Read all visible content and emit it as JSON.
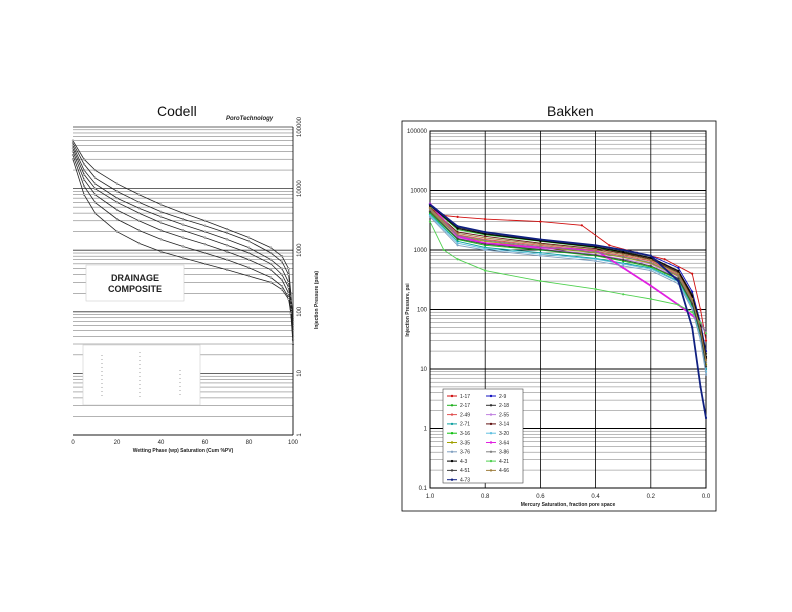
{
  "left": {
    "title": "Codell",
    "brand": "PoroTechnology",
    "box_line1": "DRAINAGE",
    "box_line2": "COMPOSITE",
    "xlabel": "Wetting Phase (wp) Saturation (Cum %PV)",
    "ylabel": "Injection Pressure (psia)",
    "x_ticks": [
      "0",
      "20",
      "40",
      "60",
      "80",
      "100"
    ],
    "y_ticks": [
      "1",
      "10",
      "100",
      "1000",
      "10000",
      "100000"
    ]
  },
  "right": {
    "title": "Bakken",
    "xlabel": "Mercury Saturation, fraction pore space",
    "ylabel": "Injection Pressure, psi",
    "x_ticks": [
      "1.0",
      "0.8",
      "0.6",
      "0.4",
      "0.2",
      "0.0"
    ],
    "y_ticks": [
      "0.1",
      "1",
      "10",
      "100",
      "1000",
      "10000",
      "100000"
    ]
  },
  "chart_data": [
    {
      "type": "line",
      "title": "Codell",
      "xlabel": "Wetting Phase (wp) Saturation (Cum %PV)",
      "ylabel": "Injection Pressure (psia)",
      "xlim": [
        0,
        100
      ],
      "ylim": [
        1,
        100000
      ],
      "y_scale": "log",
      "grid": true,
      "series": [
        {
          "x": [
            0,
            5,
            10,
            20,
            30,
            40,
            50,
            60,
            70,
            80,
            90,
            95,
            98,
            99,
            100
          ],
          "y": [
            60000,
            30000,
            20000,
            12000,
            8000,
            5500,
            4000,
            3000,
            2200,
            1600,
            1100,
            800,
            500,
            200,
            80
          ]
        },
        {
          "x": [
            0,
            5,
            10,
            20,
            30,
            40,
            50,
            60,
            70,
            80,
            90,
            95,
            98,
            99,
            100
          ],
          "y": [
            55000,
            25000,
            15000,
            9000,
            6000,
            4200,
            3200,
            2500,
            1900,
            1400,
            900,
            650,
            400,
            180,
            70
          ]
        },
        {
          "x": [
            0,
            5,
            10,
            20,
            30,
            40,
            50,
            60,
            70,
            80,
            90,
            95,
            98,
            99,
            100
          ],
          "y": [
            50000,
            20000,
            12000,
            7000,
            4800,
            3500,
            2600,
            2000,
            1500,
            1100,
            700,
            500,
            300,
            150,
            60
          ]
        },
        {
          "x": [
            0,
            5,
            10,
            20,
            30,
            40,
            50,
            60,
            70,
            80,
            90,
            95,
            98,
            99,
            100
          ],
          "y": [
            45000,
            17000,
            10000,
            6000,
            4000,
            2800,
            2100,
            1600,
            1200,
            900,
            600,
            400,
            250,
            130,
            50
          ]
        },
        {
          "x": [
            0,
            5,
            10,
            20,
            30,
            40,
            50,
            60,
            70,
            80,
            90,
            95,
            98,
            99,
            100
          ],
          "y": [
            40000,
            14000,
            8000,
            4500,
            3000,
            2100,
            1600,
            1250,
            950,
            700,
            480,
            330,
            200,
            110,
            40
          ]
        },
        {
          "x": [
            0,
            5,
            10,
            20,
            30,
            40,
            50,
            60,
            70,
            80,
            90,
            95,
            98,
            99,
            100
          ],
          "y": [
            35000,
            11000,
            6000,
            3200,
            2100,
            1500,
            1150,
            900,
            700,
            520,
            360,
            260,
            170,
            100,
            35
          ]
        },
        {
          "x": [
            0,
            5,
            10,
            20,
            30,
            40,
            50,
            60,
            70,
            80,
            90,
            95,
            98,
            99,
            100
          ],
          "y": [
            30000,
            8000,
            4000,
            2000,
            1300,
            950,
            750,
            600,
            480,
            380,
            300,
            230,
            160,
            95,
            30
          ]
        }
      ]
    },
    {
      "type": "line",
      "title": "Bakken",
      "xlabel": "Mercury Saturation, fraction pore space",
      "ylabel": "Injection Pressure, psi",
      "xlim": [
        1.0,
        0.0
      ],
      "ylim": [
        0.1,
        100000
      ],
      "y_scale": "log",
      "grid": true,
      "legend_position": "bottom-left",
      "series": [
        {
          "name": "1-17",
          "color": "#d01010",
          "x": [
            1.0,
            0.95,
            0.9,
            0.8,
            0.6,
            0.45,
            0.35,
            0.25,
            0.15,
            0.05,
            0.02,
            0.0
          ],
          "y": [
            5000,
            3800,
            3600,
            3300,
            3000,
            2600,
            1200,
            900,
            700,
            400,
            100,
            30
          ]
        },
        {
          "name": "2-9",
          "color": "#1010c0",
          "x": [
            1.0,
            0.9,
            0.8,
            0.6,
            0.4,
            0.3,
            0.2,
            0.1,
            0.05,
            0.02,
            0.0
          ],
          "y": [
            6000,
            2500,
            2000,
            1500,
            1200,
            1000,
            800,
            500,
            200,
            60,
            20
          ]
        },
        {
          "name": "2-17",
          "color": "#20b020",
          "x": [
            1.0,
            0.9,
            0.8,
            0.6,
            0.4,
            0.3,
            0.2,
            0.1,
            0.05,
            0.02,
            0.0
          ],
          "y": [
            5500,
            2200,
            1800,
            1400,
            1100,
            900,
            700,
            400,
            150,
            50,
            15
          ]
        },
        {
          "name": "2-18",
          "color": "#303030",
          "x": [
            1.0,
            0.9,
            0.8,
            0.6,
            0.4,
            0.3,
            0.2,
            0.1,
            0.05,
            0.02,
            0.0
          ],
          "y": [
            5800,
            2400,
            1900,
            1450,
            1150,
            950,
            750,
            450,
            180,
            55,
            18
          ]
        },
        {
          "name": "2-49",
          "color": "#e05050",
          "x": [
            1.0,
            0.9,
            0.8,
            0.6,
            0.4,
            0.3,
            0.2,
            0.1,
            0.05,
            0.02,
            0.0
          ],
          "y": [
            5000,
            1800,
            1500,
            1200,
            950,
            800,
            650,
            380,
            140,
            45,
            12
          ]
        },
        {
          "name": "2-55",
          "color": "#c080e0",
          "x": [
            1.0,
            0.9,
            0.8,
            0.6,
            0.4,
            0.3,
            0.2,
            0.1,
            0.05,
            0.02,
            0.0
          ],
          "y": [
            4500,
            1600,
            1300,
            1050,
            850,
            700,
            580,
            340,
            120,
            40,
            10
          ]
        },
        {
          "name": "2-71",
          "color": "#10a0a0",
          "x": [
            1.0,
            0.9,
            0.8,
            0.6,
            0.4,
            0.3,
            0.2,
            0.1,
            0.05,
            0.02,
            0.0
          ],
          "y": [
            4000,
            1400,
            1100,
            900,
            720,
            600,
            500,
            300,
            110,
            35,
            10
          ]
        },
        {
          "name": "3-14",
          "color": "#601010",
          "x": [
            1.0,
            0.9,
            0.8,
            0.6,
            0.4,
            0.3,
            0.2,
            0.1,
            0.05,
            0.02,
            0.0
          ],
          "y": [
            5200,
            2000,
            1700,
            1300,
            1050,
            880,
            700,
            420,
            160,
            50,
            15
          ]
        },
        {
          "name": "3-16",
          "color": "#10c010",
          "x": [
            1.0,
            0.9,
            0.8,
            0.6,
            0.4,
            0.3,
            0.2,
            0.1,
            0.05,
            0.02,
            0.0
          ],
          "y": [
            4200,
            1500,
            1200,
            1000,
            800,
            650,
            520,
            320,
            120,
            38,
            11
          ]
        },
        {
          "name": "3-20",
          "color": "#60c0e0",
          "x": [
            1.0,
            0.9,
            0.8,
            0.6,
            0.4,
            0.3,
            0.2,
            0.1,
            0.05,
            0.02,
            0.0
          ],
          "y": [
            3800,
            1300,
            1050,
            850,
            700,
            580,
            480,
            290,
            105,
            33,
            9
          ]
        },
        {
          "name": "3-35",
          "color": "#a0a000",
          "x": [
            1.0,
            0.9,
            0.8,
            0.6,
            0.4,
            0.3,
            0.2,
            0.1,
            0.05,
            0.02,
            0.0
          ],
          "y": [
            4600,
            1700,
            1400,
            1100,
            900,
            750,
            600,
            360,
            130,
            42,
            12
          ]
        },
        {
          "name": "3-64",
          "color": "#e020e0",
          "x": [
            1.0,
            0.9,
            0.8,
            0.6,
            0.4,
            0.3,
            0.2,
            0.1,
            0.05,
            0.02,
            0.0
          ],
          "y": [
            6000,
            1700,
            1300,
            1100,
            1000,
            500,
            250,
            120,
            80,
            60,
            40
          ]
        },
        {
          "name": "3-76",
          "color": "#80a0c0",
          "x": [
            1.0,
            0.9,
            0.8,
            0.6,
            0.4,
            0.3,
            0.2,
            0.1,
            0.05,
            0.02,
            0.0
          ],
          "y": [
            3600,
            1200,
            1000,
            800,
            650,
            540,
            450,
            270,
            100,
            30,
            8
          ]
        },
        {
          "name": "3-86",
          "color": "#808080",
          "x": [
            1.0,
            0.9,
            0.8,
            0.6,
            0.4,
            0.3,
            0.2,
            0.1,
            0.05,
            0.02,
            0.0
          ],
          "y": [
            4800,
            1750,
            1450,
            1150,
            920,
            770,
            620,
            370,
            135,
            44,
            13
          ]
        },
        {
          "name": "4-3",
          "color": "#000000",
          "x": [
            1.0,
            0.9,
            0.8,
            0.6,
            0.4,
            0.3,
            0.2,
            0.1,
            0.05,
            0.02,
            0.0
          ],
          "y": [
            5600,
            2300,
            1850,
            1420,
            1120,
            920,
            730,
            440,
            170,
            52,
            16
          ]
        },
        {
          "name": "4-21",
          "color": "#50d050",
          "x": [
            1.0,
            0.95,
            0.9,
            0.8,
            0.6,
            0.4,
            0.3,
            0.2,
            0.1,
            0.05,
            0.02,
            0.0
          ],
          "y": [
            3000,
            1000,
            700,
            450,
            300,
            220,
            180,
            150,
            120,
            90,
            60,
            40
          ]
        },
        {
          "name": "4-51",
          "color": "#404040",
          "x": [
            1.0,
            0.9,
            0.8,
            0.6,
            0.4,
            0.3,
            0.2,
            0.1,
            0.05,
            0.02,
            0.0
          ],
          "y": [
            4400,
            1550,
            1250,
            1020,
            820,
            680,
            540,
            330,
            125,
            40,
            11
          ]
        },
        {
          "name": "4-66",
          "color": "#a08040",
          "x": [
            1.0,
            0.9,
            0.8,
            0.6,
            0.4,
            0.3,
            0.2,
            0.1,
            0.05,
            0.02,
            0.0
          ],
          "y": [
            5100,
            1900,
            1600,
            1250,
            1000,
            840,
            680,
            400,
            150,
            48,
            14
          ]
        },
        {
          "name": "4-73",
          "color": "#102080",
          "x": [
            1.0,
            0.9,
            0.8,
            0.6,
            0.4,
            0.3,
            0.2,
            0.1,
            0.05,
            0.02,
            0.0
          ],
          "y": [
            5800,
            2500,
            2000,
            1500,
            1200,
            1000,
            800,
            300,
            50,
            5,
            1.5
          ]
        }
      ]
    }
  ]
}
